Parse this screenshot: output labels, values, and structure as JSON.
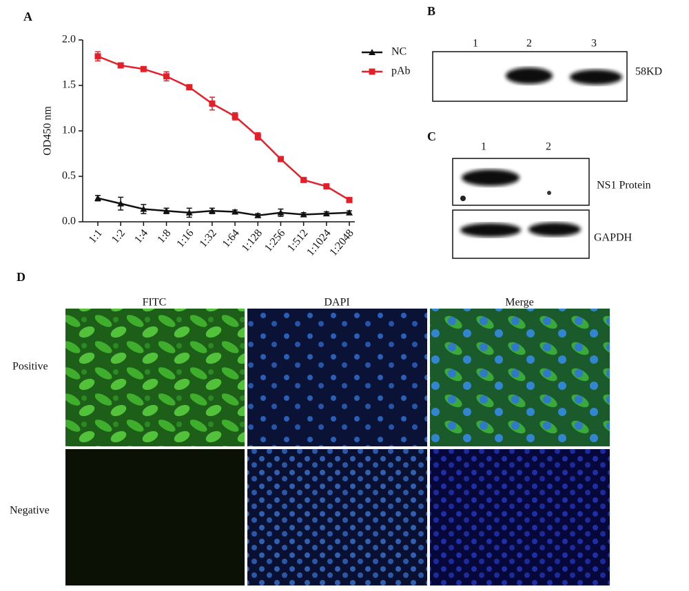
{
  "panel_labels": [
    "A",
    "B",
    "C",
    "D"
  ],
  "chart_data": {
    "type": "line",
    "y_label": "OD450 nm",
    "categories": [
      "1:1",
      "1:2",
      "1:4",
      "1:8",
      "1:16",
      "1:32",
      "1:64",
      "1:128",
      "1:256",
      "1:512",
      "1:1024",
      "1:2048"
    ],
    "series": [
      {
        "name": "NC",
        "color": "#111111",
        "marker": "triangle",
        "values": [
          0.26,
          0.2,
          0.14,
          0.12,
          0.1,
          0.12,
          0.11,
          0.07,
          0.1,
          0.08,
          0.09,
          0.1
        ],
        "errors": [
          0.03,
          0.07,
          0.05,
          0.03,
          0.05,
          0.03,
          0.02,
          0.02,
          0.04,
          0.02,
          0.02,
          0.02
        ]
      },
      {
        "name": "pAb",
        "color": "#e3202a",
        "marker": "square",
        "values": [
          1.82,
          1.72,
          1.68,
          1.6,
          1.48,
          1.3,
          1.16,
          0.94,
          0.69,
          0.46,
          0.39,
          0.24
        ],
        "errors": [
          0.05,
          0.02,
          0.02,
          0.05,
          0.02,
          0.07,
          0.04,
          0.04,
          0.01,
          0.02,
          0.01,
          0.02
        ]
      }
    ],
    "ylim": [
      0,
      2
    ],
    "yticks": [
      {
        "value": 0,
        "label": "0.0"
      },
      0.5,
      {
        "value": 1,
        "label": "1.0"
      },
      1.5,
      {
        "value": 2,
        "label": "2.0"
      }
    ],
    "legend": "outside-right"
  },
  "panel_b": {
    "lanes": [
      "1",
      "2",
      "3"
    ],
    "band_label": "58KD"
  },
  "panel_c": {
    "lanes": [
      "1",
      "2"
    ],
    "rows": [
      "NS1 Protein",
      "GAPDH"
    ]
  },
  "panel_d": {
    "columns": [
      "FITC",
      "DAPI",
      "Merge"
    ],
    "rows": [
      "Positive",
      "Negative"
    ]
  }
}
